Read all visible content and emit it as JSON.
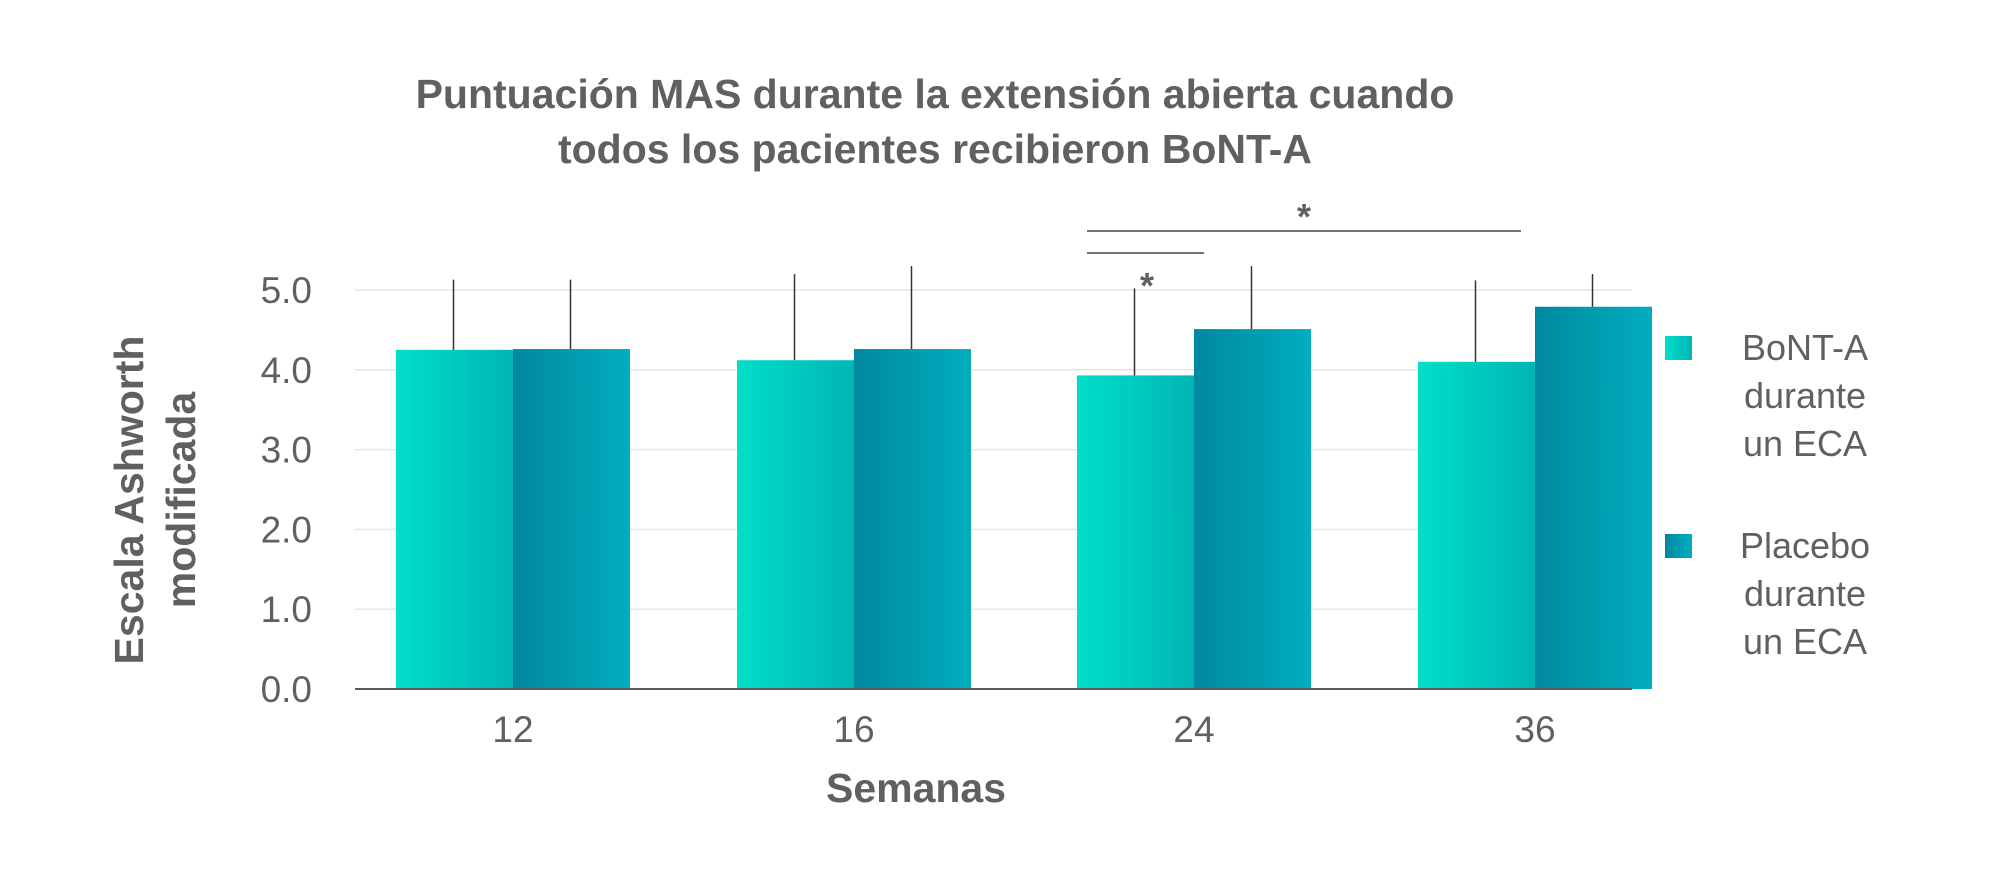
{
  "chart_data": {
    "type": "bar",
    "title": [
      "Puntuación MAS durante la extensión abierta cuando",
      "todos los pacientes recibieron BoNT-A"
    ],
    "xlabel": "Semanas",
    "ylabel": [
      "Escala Ashworth",
      "modificada"
    ],
    "categories": [
      "12",
      "16",
      "24",
      "36"
    ],
    "ylim": [
      0,
      5
    ],
    "yticks": [
      "0.0",
      "1.0",
      "2.0",
      "3.0",
      "4.0",
      "5.0"
    ],
    "grid": true,
    "series": [
      {
        "name": [
          "BoNT-A",
          "durante",
          "un ECA"
        ],
        "color_light": "#00dfc8",
        "color_dark": "#00b5b5",
        "values": [
          4.25,
          4.12,
          3.93,
          4.1
        ],
        "error_upper": [
          5.13,
          5.2,
          5.02,
          5.12
        ]
      },
      {
        "name": [
          "Placebo",
          "durante",
          "un ECA"
        ],
        "color_light": "#0088a0",
        "color_dark": "#00aebe",
        "values": [
          4.26,
          4.26,
          4.51,
          4.79
        ],
        "error_upper": [
          5.13,
          5.3,
          5.3,
          5.2
        ]
      }
    ],
    "annotations": [
      {
        "label": "*",
        "between": [
          "24 BoNT-A",
          "24 Placebo"
        ]
      },
      {
        "label": "*",
        "between": [
          "24 BoNT-A",
          "36 Placebo"
        ]
      }
    ]
  }
}
